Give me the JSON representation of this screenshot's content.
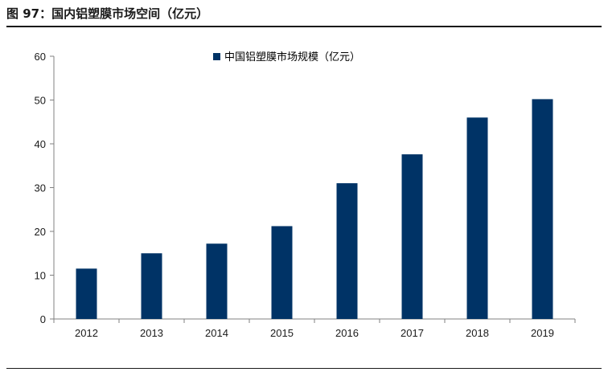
{
  "figure": {
    "title": "图 97：国内铝塑膜市场空间（亿元）"
  },
  "chart_data": {
    "type": "bar",
    "categories": [
      "2012",
      "2013",
      "2014",
      "2015",
      "2016",
      "2017",
      "2018",
      "2019"
    ],
    "series": [
      {
        "name": "中国铝塑膜市场规模（亿元）",
        "values": [
          11.5,
          15,
          17.2,
          21.2,
          31,
          37.6,
          46,
          50.2
        ]
      }
    ],
    "ylim": [
      0,
      60
    ],
    "yticks": [
      0,
      10,
      20,
      30,
      40,
      50,
      60
    ],
    "grid": false,
    "legend_position": "top",
    "colors": {
      "bar": "#003366",
      "axis": "#808080",
      "text": "#1a1a1a"
    }
  }
}
